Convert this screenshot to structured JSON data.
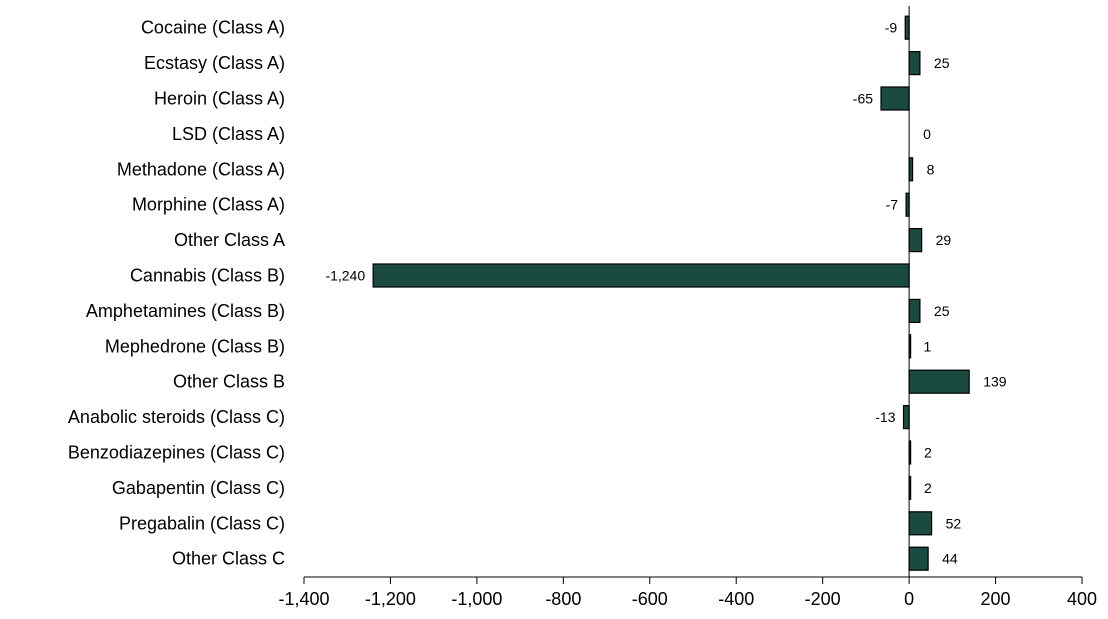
{
  "chart_data": {
    "type": "bar",
    "orientation": "horizontal",
    "categories": [
      "Cocaine (Class A)",
      "Ecstasy (Class A)",
      "Heroin (Class A)",
      "LSD (Class A)",
      "Methadone (Class A)",
      "Morphine (Class A)",
      "Other Class A",
      "Cannabis (Class B)",
      "Amphetamines (Class B)",
      "Mephedrone (Class B)",
      "Other Class B",
      "Anabolic steroids (Class C)",
      "Benzodiazepines (Class C)",
      "Gabapentin (Class C)",
      "Pregabalin (Class C)",
      "Other Class C"
    ],
    "values": [
      -9,
      25,
      -65,
      0,
      8,
      -7,
      29,
      -1240,
      25,
      1,
      139,
      -13,
      2,
      2,
      52,
      44
    ],
    "data_labels": [
      "-9",
      "25",
      "-65",
      "0",
      "8",
      "-7",
      "29",
      "-1,240",
      "25",
      "1",
      "139",
      "-13",
      "2",
      "2",
      "52",
      "44"
    ],
    "xlim": [
      -1400,
      400
    ],
    "x_ticks": [
      -1400,
      -1200,
      -1000,
      -800,
      -600,
      -400,
      -200,
      0,
      200,
      400
    ],
    "x_tick_labels": [
      "-1,400",
      "-1,200",
      "-1,000",
      "-800",
      "-600",
      "-400",
      "-200",
      "0",
      "200",
      "400"
    ],
    "grid": false,
    "legend": "none",
    "bar_color": "#1a4a40",
    "bar_outline_color": "#000000"
  }
}
